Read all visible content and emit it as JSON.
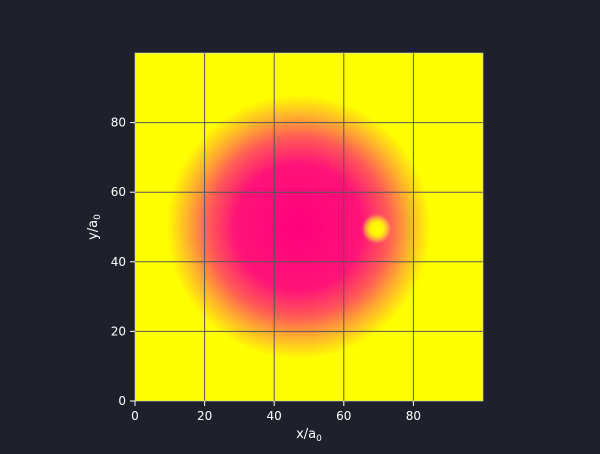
{
  "chart_data": {
    "type": "heatmap",
    "title": "",
    "xlabel": "x/a",
    "xlabel_sub": "0",
    "ylabel": "y/a",
    "ylabel_sub": "0",
    "xlim": [
      0,
      100
    ],
    "ylim": [
      0,
      100
    ],
    "x_ticks": [
      0,
      20,
      40,
      60,
      80
    ],
    "y_ticks": [
      0,
      20,
      40,
      60,
      80
    ],
    "grid": true,
    "colormap": "spring",
    "colormap_stops": [
      "#ff00ff",
      "#ff0080",
      "#ffff00"
    ],
    "field": {
      "main_blob": {
        "center": [
          47,
          50
        ],
        "core_radius": 18,
        "outer_radius": 38
      },
      "bubble": {
        "center": [
          69.5,
          49.5
        ],
        "radius": 4.5
      }
    },
    "background_color": "#1e212b",
    "grid_color": "#555555",
    "text_color": "#ffffff"
  }
}
